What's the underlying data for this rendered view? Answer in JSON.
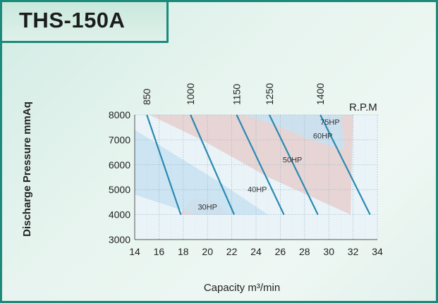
{
  "title": "THS-150A",
  "chart_data": {
    "type": "line",
    "xlabel": "Capacity  m³/min",
    "ylabel": "Discharge  Pressure  mmAq",
    "xlim": [
      14,
      34
    ],
    "ylim": [
      3000,
      8000
    ],
    "x_ticks": [
      "14",
      "16",
      "18",
      "20",
      "22",
      "24",
      "26",
      "28",
      "30",
      "32",
      "34"
    ],
    "y_ticks": [
      "3000",
      "4000",
      "5000",
      "6000",
      "7000",
      "8000"
    ],
    "rpm_unit_label": "R.P.M",
    "grid": true,
    "series": [
      {
        "name": "850",
        "x": [
          15.0,
          17.8
        ],
        "y": [
          8000,
          4000
        ]
      },
      {
        "name": "1000",
        "x": [
          18.6,
          22.2
        ],
        "y": [
          8000,
          4000
        ]
      },
      {
        "name": "1150",
        "x": [
          22.4,
          26.3
        ],
        "y": [
          8000,
          4000
        ]
      },
      {
        "name": "1250",
        "x": [
          25.1,
          29.1
        ],
        "y": [
          8000,
          4000
        ]
      },
      {
        "name": "1400",
        "x": [
          29.3,
          33.4
        ],
        "y": [
          8000,
          4000
        ]
      }
    ],
    "hp_labels": [
      {
        "text": "30HP",
        "x": 19.2,
        "y": 4200
      },
      {
        "text": "40HP",
        "x": 23.3,
        "y": 4900
      },
      {
        "text": "50HP",
        "x": 26.2,
        "y": 6100
      },
      {
        "text": "60HP",
        "x": 28.7,
        "y": 7050
      },
      {
        "text": "75HP",
        "x": 29.3,
        "y": 7600
      }
    ],
    "bands": [
      {
        "kind": "pink",
        "points": [
          [
            15.2,
            8000
          ],
          [
            32.0,
            8000
          ],
          [
            31.8,
            4000
          ],
          [
            25.0,
            5500
          ],
          [
            19.5,
            7000
          ]
        ]
      },
      {
        "kind": "pink",
        "points": [
          [
            17.7,
            4000
          ],
          [
            21.8,
            4000
          ],
          [
            20.5,
            4600
          ],
          [
            18.6,
            4600
          ]
        ]
      },
      {
        "kind": "blue",
        "points": [
          [
            14.0,
            7400
          ],
          [
            21.0,
            5300
          ],
          [
            25.0,
            4000
          ],
          [
            19.0,
            4000
          ],
          [
            14.0,
            4800
          ]
        ]
      },
      {
        "kind": "blue",
        "points": [
          [
            23.0,
            8000
          ],
          [
            31.0,
            8000
          ],
          [
            31.3,
            6600
          ],
          [
            28.5,
            7000
          ],
          [
            25.5,
            7600
          ]
        ]
      }
    ],
    "colors": {
      "line": "#2a8ab0",
      "pink": "#e6cfcf",
      "blue": "#c8e2f2",
      "grid": "#9fb9c9"
    }
  }
}
